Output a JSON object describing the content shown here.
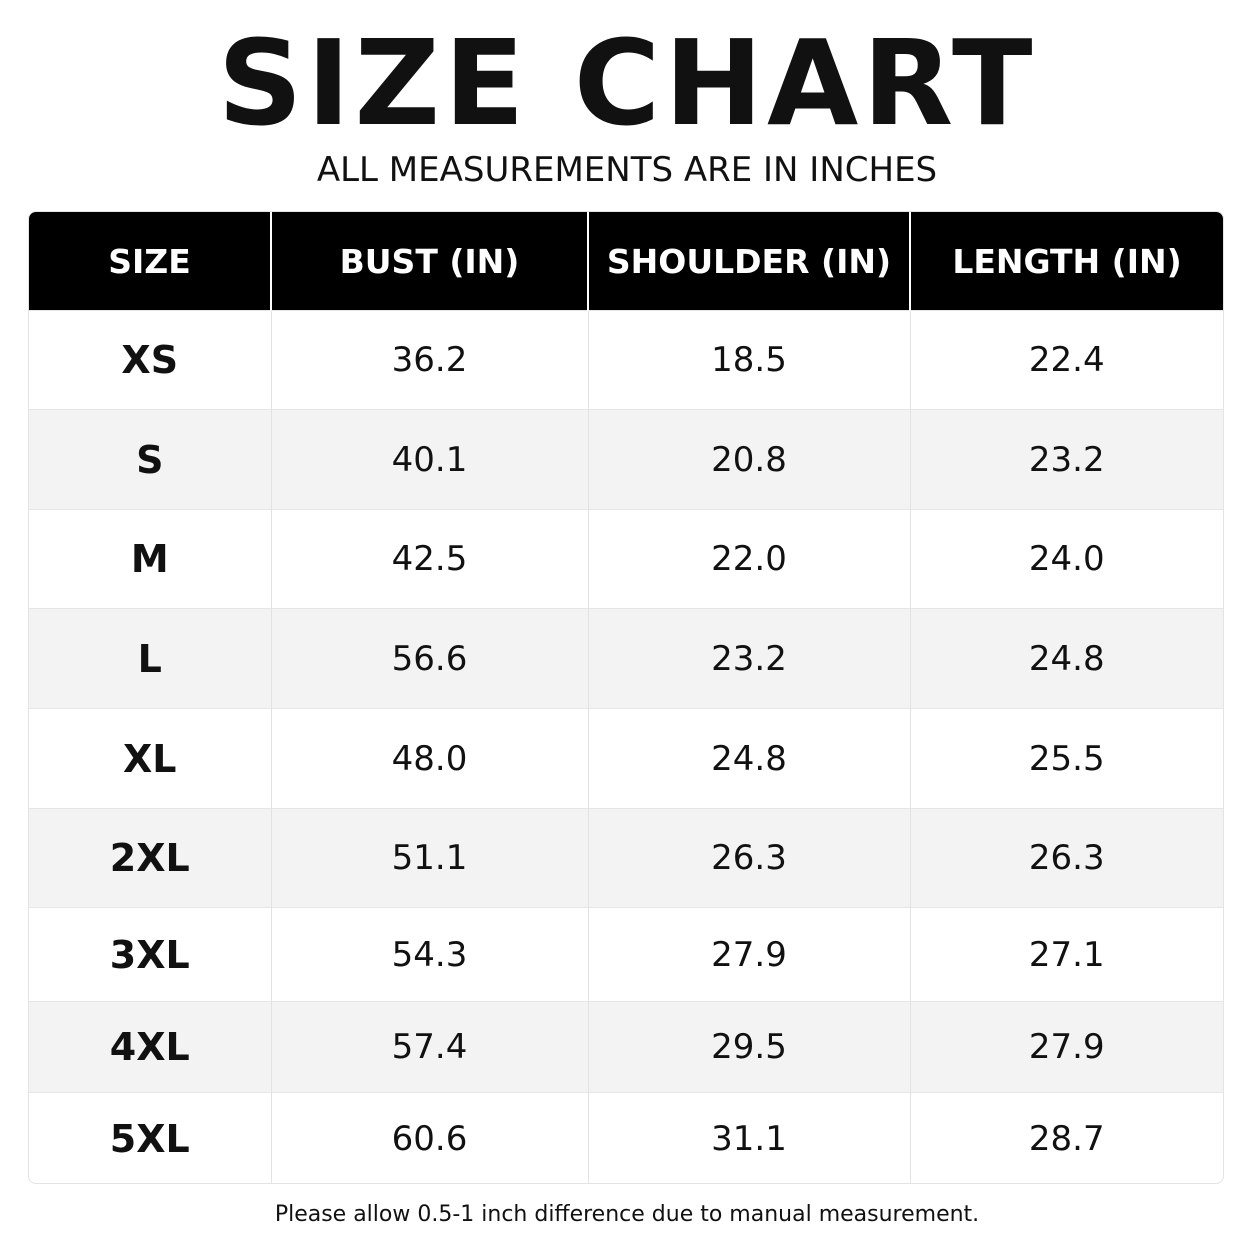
{
  "header": {
    "title": "SIZE CHART",
    "subtitle": "ALL MEASUREMENTS ARE IN INCHES"
  },
  "table": {
    "columns": [
      "SIZE",
      "BUST (IN)",
      "SHOULDER (IN)",
      "LENGTH (IN)"
    ],
    "rows": [
      [
        "XS",
        "36.2",
        "18.5",
        "22.4"
      ],
      [
        "S",
        "40.1",
        "20.8",
        "23.2"
      ],
      [
        "M",
        "42.5",
        "22.0",
        "24.0"
      ],
      [
        "L",
        "56.6",
        "23.2",
        "24.8"
      ],
      [
        "XL",
        "48.0",
        "24.8",
        "25.5"
      ],
      [
        "2XL",
        "51.1",
        "26.3",
        "26.3"
      ],
      [
        "3XL",
        "54.3",
        "27.9",
        "27.1"
      ],
      [
        "4XL",
        "57.4",
        "29.5",
        "27.9"
      ],
      [
        "5XL",
        "60.6",
        "31.1",
        "28.7"
      ]
    ]
  },
  "footer": {
    "note": "Please allow 0.5-1 inch difference due to manual measurement."
  }
}
